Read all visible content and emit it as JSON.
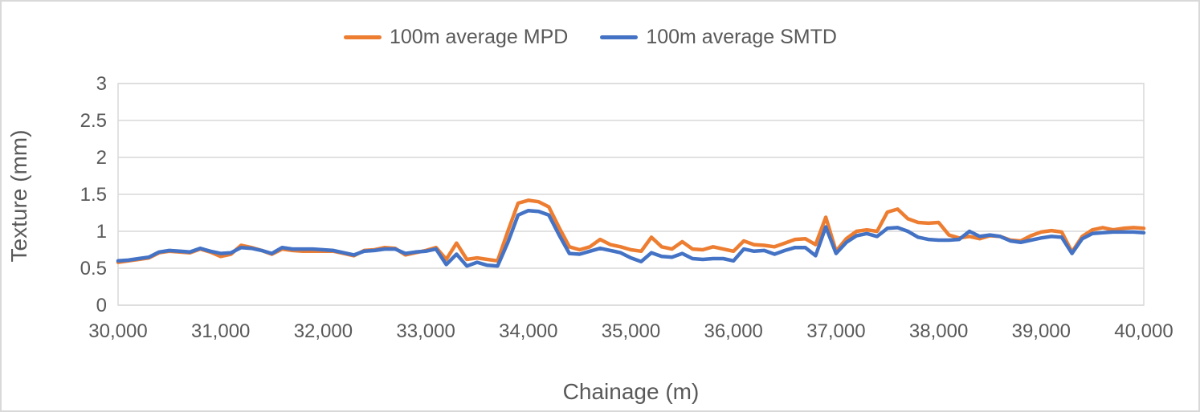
{
  "legend": {
    "items": [
      {
        "label": "100m average MPD",
        "color": "#ED7D31"
      },
      {
        "label": "100m average SMTD",
        "color": "#4472C4"
      }
    ]
  },
  "y_axis": {
    "title": "Texture (mm)",
    "tick_labels": [
      "0",
      "0.5",
      "1",
      "1.5",
      "2",
      "2.5",
      "3"
    ],
    "tick_values": [
      0,
      0.5,
      1,
      1.5,
      2,
      2.5,
      3
    ]
  },
  "x_axis": {
    "title": "Chainage (m)",
    "tick_labels": [
      "30,000",
      "31,000",
      "32,000",
      "33,000",
      "34,000",
      "35,000",
      "36,000",
      "37,000",
      "38,000",
      "39,000",
      "40,000"
    ],
    "tick_values": [
      30000,
      31000,
      32000,
      33000,
      34000,
      35000,
      36000,
      37000,
      38000,
      39000,
      40000
    ]
  },
  "colors": {
    "mpd_line": "#ED7D31",
    "smtd_line": "#4472C4",
    "gridline": "#D9D9D9",
    "axis_text": "#595959",
    "frame_border": "#D9D9D9"
  },
  "chart_data": {
    "type": "line",
    "title": "",
    "xlabel": "Chainage (m)",
    "ylabel": "Texture (mm)",
    "xlim": [
      30000,
      40000
    ],
    "ylim": [
      0,
      3
    ],
    "grid": true,
    "legend_position": "top",
    "x": [
      30000,
      30100,
      30200,
      30300,
      30400,
      30500,
      30600,
      30700,
      30800,
      30900,
      31000,
      31100,
      31200,
      31300,
      31400,
      31500,
      31600,
      31700,
      31800,
      31900,
      32000,
      32100,
      32200,
      32300,
      32400,
      32500,
      32600,
      32700,
      32800,
      32900,
      33000,
      33100,
      33200,
      33300,
      33400,
      33500,
      33600,
      33700,
      33800,
      33900,
      34000,
      34100,
      34200,
      34300,
      34400,
      34500,
      34600,
      34700,
      34800,
      34900,
      35000,
      35100,
      35200,
      35300,
      35400,
      35500,
      35600,
      35700,
      35800,
      35900,
      36000,
      36100,
      36200,
      36300,
      36400,
      36500,
      36600,
      36700,
      36800,
      36900,
      37000,
      37100,
      37200,
      37300,
      37400,
      37500,
      37600,
      37700,
      37800,
      37900,
      38000,
      38100,
      38200,
      38300,
      38400,
      38500,
      38600,
      38700,
      38800,
      38900,
      39000,
      39100,
      39200,
      39300,
      39400,
      39500,
      39600,
      39700,
      39800,
      39900,
      40000
    ],
    "series": [
      {
        "name": "100m average MPD",
        "color": "#ED7D31",
        "values": [
          0.58,
          0.6,
          0.62,
          0.64,
          0.71,
          0.73,
          0.72,
          0.71,
          0.76,
          0.72,
          0.66,
          0.69,
          0.81,
          0.78,
          0.74,
          0.69,
          0.76,
          0.74,
          0.73,
          0.73,
          0.73,
          0.73,
          0.7,
          0.67,
          0.74,
          0.75,
          0.78,
          0.77,
          0.68,
          0.71,
          0.74,
          0.78,
          0.62,
          0.84,
          0.62,
          0.64,
          0.62,
          0.6,
          1.0,
          1.38,
          1.42,
          1.4,
          1.33,
          1.05,
          0.79,
          0.75,
          0.79,
          0.89,
          0.82,
          0.79,
          0.75,
          0.73,
          0.92,
          0.79,
          0.76,
          0.86,
          0.76,
          0.75,
          0.79,
          0.76,
          0.73,
          0.87,
          0.82,
          0.81,
          0.79,
          0.84,
          0.89,
          0.9,
          0.82,
          1.19,
          0.73,
          0.9,
          1.0,
          1.02,
          1.0,
          1.26,
          1.3,
          1.17,
          1.12,
          1.11,
          1.12,
          0.95,
          0.91,
          0.93,
          0.9,
          0.94,
          0.93,
          0.88,
          0.87,
          0.94,
          0.99,
          1.01,
          0.99,
          0.72,
          0.93,
          1.02,
          1.05,
          1.02,
          1.04,
          1.05,
          1.04
        ]
      },
      {
        "name": "100m average SMTD",
        "color": "#4472C4",
        "values": [
          0.6,
          0.61,
          0.63,
          0.65,
          0.72,
          0.74,
          0.73,
          0.72,
          0.77,
          0.73,
          0.7,
          0.71,
          0.78,
          0.77,
          0.74,
          0.7,
          0.78,
          0.76,
          0.76,
          0.76,
          0.75,
          0.74,
          0.71,
          0.68,
          0.73,
          0.74,
          0.76,
          0.76,
          0.7,
          0.72,
          0.73,
          0.76,
          0.55,
          0.69,
          0.53,
          0.58,
          0.54,
          0.53,
          0.85,
          1.22,
          1.28,
          1.27,
          1.22,
          0.95,
          0.7,
          0.69,
          0.73,
          0.77,
          0.74,
          0.71,
          0.64,
          0.59,
          0.71,
          0.66,
          0.65,
          0.7,
          0.63,
          0.62,
          0.63,
          0.63,
          0.6,
          0.76,
          0.73,
          0.74,
          0.69,
          0.74,
          0.78,
          0.78,
          0.67,
          1.06,
          0.7,
          0.85,
          0.94,
          0.97,
          0.93,
          1.04,
          1.05,
          1.0,
          0.92,
          0.89,
          0.88,
          0.88,
          0.89,
          1.0,
          0.93,
          0.95,
          0.93,
          0.87,
          0.85,
          0.88,
          0.91,
          0.93,
          0.92,
          0.7,
          0.9,
          0.97,
          0.98,
          0.99,
          0.99,
          0.99,
          0.98
        ]
      }
    ]
  }
}
